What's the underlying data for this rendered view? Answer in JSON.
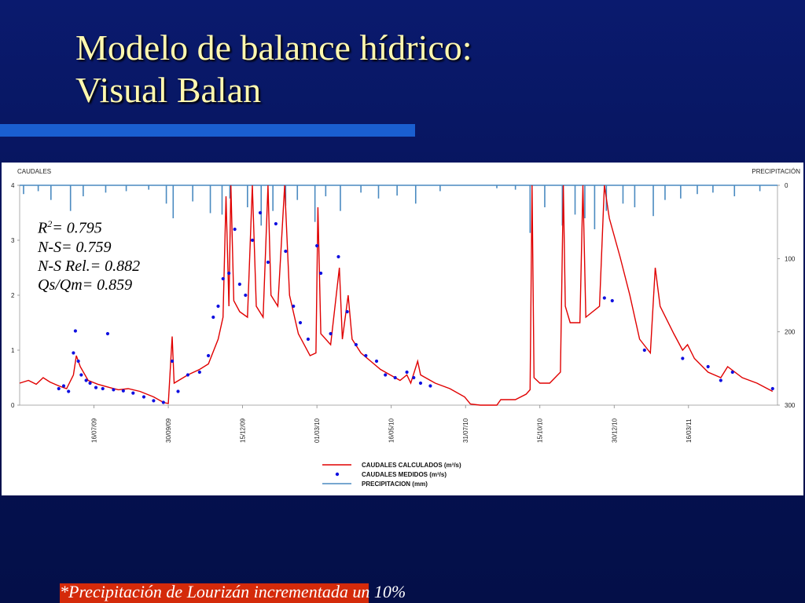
{
  "slide": {
    "title_line1": "Modelo de balance hídrico:",
    "title_line2": "Visual Balan",
    "footnote": "*Precipitación de Lourizán incrementada un 10%",
    "colors": {
      "title": "#fff8b0",
      "accent_bar": "#1a5fd0",
      "footnote_highlight": "#d42a0a"
    }
  },
  "stats": {
    "r2_label": "R",
    "r2_sup": "2",
    "r2_value": "= 0.795",
    "ns": "N-S= 0.759",
    "ns_rel": "N-S Rel.= 0.882",
    "qs_qm": "Qs/Qm= 0.859"
  },
  "chart_data": {
    "type": "line",
    "left_axis_label": "CAUDALES",
    "right_axis_label": "PRECIPITACIÓN",
    "left_ticks": [
      "0",
      "1",
      "2",
      "3",
      "4"
    ],
    "left_ylim": [
      0,
      4
    ],
    "right_ticks": [
      "0",
      "100",
      "200",
      "300"
    ],
    "right_ylim": [
      0,
      300
    ],
    "right_inverted": true,
    "xlim": [
      "2009-05-01",
      "2011-06-15"
    ],
    "x_ticks": [
      "16/07/09",
      "30/09/09",
      "15/12/09",
      "01/03/10",
      "16/05/10",
      "31/07/10",
      "15/10/10",
      "30/12/10",
      "16/03/11"
    ],
    "x_tick_dates": [
      "2009-07-16",
      "2009-09-30",
      "2009-12-15",
      "2010-03-01",
      "2010-05-16",
      "2010-07-31",
      "2010-10-15",
      "2010-12-30",
      "2011-03-16"
    ],
    "legend": [
      "CAUDALES CALCULADOS (m³/s)",
      "CAUDALES MEDIDOS (m³/s)",
      "PRECIPITACION (mm)"
    ],
    "series": [
      {
        "name": "CAUDALES CALCULADOS (m³/s)",
        "color": "#e00000",
        "style": "line",
        "points": [
          [
            "2009-05-01",
            0.4
          ],
          [
            "2009-05-10",
            0.45
          ],
          [
            "2009-05-18",
            0.38
          ],
          [
            "2009-05-25",
            0.5
          ],
          [
            "2009-06-01",
            0.42
          ],
          [
            "2009-06-10",
            0.35
          ],
          [
            "2009-06-18",
            0.3
          ],
          [
            "2009-06-25",
            0.55
          ],
          [
            "2009-06-28",
            0.9
          ],
          [
            "2009-07-02",
            0.7
          ],
          [
            "2009-07-10",
            0.45
          ],
          [
            "2009-07-20",
            0.38
          ],
          [
            "2009-08-01",
            0.32
          ],
          [
            "2009-08-10",
            0.28
          ],
          [
            "2009-08-20",
            0.3
          ],
          [
            "2009-09-01",
            0.25
          ],
          [
            "2009-09-15",
            0.15
          ],
          [
            "2009-09-25",
            0.05
          ],
          [
            "2009-09-30",
            0.03
          ],
          [
            "2009-10-04",
            1.25
          ],
          [
            "2009-10-06",
            0.4
          ],
          [
            "2009-10-20",
            0.55
          ],
          [
            "2009-11-01",
            0.65
          ],
          [
            "2009-11-10",
            0.75
          ],
          [
            "2009-11-20",
            1.2
          ],
          [
            "2009-11-25",
            1.6
          ],
          [
            "2009-11-28",
            3.8
          ],
          [
            "2009-12-01",
            1.8
          ],
          [
            "2009-12-03",
            4.0
          ],
          [
            "2009-12-06",
            1.9
          ],
          [
            "2009-12-12",
            1.7
          ],
          [
            "2009-12-20",
            1.6
          ],
          [
            "2009-12-25",
            4.0
          ],
          [
            "2009-12-29",
            1.8
          ],
          [
            "2010-01-05",
            1.6
          ],
          [
            "2010-01-10",
            4.0
          ],
          [
            "2010-01-13",
            2.0
          ],
          [
            "2010-01-20",
            1.8
          ],
          [
            "2010-01-27",
            4.0
          ],
          [
            "2010-02-01",
            2.0
          ],
          [
            "2010-02-10",
            1.3
          ],
          [
            "2010-02-22",
            0.9
          ],
          [
            "2010-02-28",
            0.95
          ],
          [
            "2010-03-02",
            3.6
          ],
          [
            "2010-03-05",
            1.3
          ],
          [
            "2010-03-15",
            1.1
          ],
          [
            "2010-03-24",
            2.5
          ],
          [
            "2010-03-27",
            1.2
          ],
          [
            "2010-04-02",
            2.0
          ],
          [
            "2010-04-06",
            1.2
          ],
          [
            "2010-04-15",
            0.95
          ],
          [
            "2010-04-25",
            0.8
          ],
          [
            "2010-05-05",
            0.65
          ],
          [
            "2010-05-15",
            0.55
          ],
          [
            "2010-05-25",
            0.45
          ],
          [
            "2010-06-01",
            0.55
          ],
          [
            "2010-06-05",
            0.4
          ],
          [
            "2010-06-12",
            0.8
          ],
          [
            "2010-06-15",
            0.55
          ],
          [
            "2010-06-30",
            0.4
          ],
          [
            "2010-07-15",
            0.3
          ],
          [
            "2010-07-30",
            0.15
          ],
          [
            "2010-08-05",
            0.02
          ],
          [
            "2010-08-15",
            0.0
          ],
          [
            "2010-09-01",
            0.0
          ],
          [
            "2010-09-05",
            0.1
          ],
          [
            "2010-09-20",
            0.1
          ],
          [
            "2010-10-01",
            0.2
          ],
          [
            "2010-10-05",
            0.28
          ],
          [
            "2010-10-07",
            4.0
          ],
          [
            "2010-10-09",
            0.5
          ],
          [
            "2010-10-15",
            0.4
          ],
          [
            "2010-10-25",
            0.4
          ],
          [
            "2010-11-05",
            0.6
          ],
          [
            "2010-11-08",
            4.0
          ],
          [
            "2010-11-10",
            1.8
          ],
          [
            "2010-11-15",
            1.5
          ],
          [
            "2010-11-25",
            1.5
          ],
          [
            "2010-11-28",
            4.0
          ],
          [
            "2010-12-01",
            1.6
          ],
          [
            "2010-12-15",
            1.8
          ],
          [
            "2010-12-20",
            4.0
          ],
          [
            "2010-12-25",
            3.4
          ],
          [
            "2011-01-05",
            2.7
          ],
          [
            "2011-01-15",
            2.0
          ],
          [
            "2011-01-25",
            1.2
          ],
          [
            "2011-02-05",
            0.95
          ],
          [
            "2011-02-10",
            2.5
          ],
          [
            "2011-02-15",
            1.8
          ],
          [
            "2011-03-01",
            1.3
          ],
          [
            "2011-03-10",
            1.0
          ],
          [
            "2011-03-15",
            1.1
          ],
          [
            "2011-03-22",
            0.85
          ],
          [
            "2011-04-05",
            0.6
          ],
          [
            "2011-04-18",
            0.5
          ],
          [
            "2011-04-25",
            0.7
          ],
          [
            "2011-05-10",
            0.5
          ],
          [
            "2011-05-25",
            0.4
          ],
          [
            "2011-06-10",
            0.25
          ]
        ]
      },
      {
        "name": "CAUDALES MEDIDOS (m³/s)",
        "color": "#1010e0",
        "style": "dots",
        "points": [
          [
            "2009-06-10",
            0.3
          ],
          [
            "2009-06-15",
            0.35
          ],
          [
            "2009-06-20",
            0.25
          ],
          [
            "2009-06-25",
            0.95
          ],
          [
            "2009-06-27",
            1.35
          ],
          [
            "2009-06-30",
            0.8
          ],
          [
            "2009-07-03",
            0.55
          ],
          [
            "2009-07-08",
            0.45
          ],
          [
            "2009-07-12",
            0.4
          ],
          [
            "2009-07-18",
            0.32
          ],
          [
            "2009-07-25",
            0.3
          ],
          [
            "2009-07-30",
            1.3
          ],
          [
            "2009-08-05",
            0.28
          ],
          [
            "2009-08-15",
            0.26
          ],
          [
            "2009-08-25",
            0.22
          ],
          [
            "2009-09-05",
            0.15
          ],
          [
            "2009-09-15",
            0.08
          ],
          [
            "2009-09-25",
            0.05
          ],
          [
            "2009-10-04",
            0.8
          ],
          [
            "2009-10-10",
            0.25
          ],
          [
            "2009-10-20",
            0.55
          ],
          [
            "2009-11-01",
            0.6
          ],
          [
            "2009-11-10",
            0.9
          ],
          [
            "2009-11-15",
            1.6
          ],
          [
            "2009-11-20",
            1.8
          ],
          [
            "2009-11-25",
            2.3
          ],
          [
            "2009-12-01",
            2.4
          ],
          [
            "2009-12-07",
            3.2
          ],
          [
            "2009-12-12",
            2.2
          ],
          [
            "2009-12-18",
            2.0
          ],
          [
            "2009-12-25",
            3.0
          ],
          [
            "2010-01-02",
            3.5
          ],
          [
            "2010-01-10",
            2.6
          ],
          [
            "2010-01-18",
            3.3
          ],
          [
            "2010-01-28",
            2.8
          ],
          [
            "2010-02-05",
            1.8
          ],
          [
            "2010-02-12",
            1.5
          ],
          [
            "2010-02-20",
            1.2
          ],
          [
            "2010-03-01",
            2.9
          ],
          [
            "2010-03-05",
            2.4
          ],
          [
            "2010-03-15",
            1.3
          ],
          [
            "2010-03-23",
            2.7
          ],
          [
            "2010-04-01",
            1.7
          ],
          [
            "2010-04-10",
            1.1
          ],
          [
            "2010-04-20",
            0.9
          ],
          [
            "2010-05-01",
            0.8
          ],
          [
            "2010-05-10",
            0.55
          ],
          [
            "2010-05-20",
            0.5
          ],
          [
            "2010-06-01",
            0.6
          ],
          [
            "2010-06-08",
            0.5
          ],
          [
            "2010-06-15",
            0.4
          ],
          [
            "2010-06-25",
            0.35
          ],
          [
            "2010-12-20",
            1.95
          ],
          [
            "2010-12-28",
            1.9
          ],
          [
            "2011-01-30",
            1.0
          ],
          [
            "2011-03-10",
            0.85
          ],
          [
            "2011-04-05",
            0.7
          ],
          [
            "2011-04-18",
            0.45
          ],
          [
            "2011-04-30",
            0.6
          ],
          [
            "2011-06-10",
            0.3
          ]
        ]
      },
      {
        "name": "PRECIPITACION (mm)",
        "color": "#4a8ac0",
        "style": "bars",
        "points": [
          [
            "2009-05-05",
            12
          ],
          [
            "2009-05-20",
            8
          ],
          [
            "2009-06-02",
            20
          ],
          [
            "2009-06-22",
            35
          ],
          [
            "2009-07-05",
            15
          ],
          [
            "2009-07-28",
            10
          ],
          [
            "2009-08-18",
            8
          ],
          [
            "2009-09-10",
            6
          ],
          [
            "2009-09-28",
            25
          ],
          [
            "2009-10-05",
            45
          ],
          [
            "2009-10-25",
            22
          ],
          [
            "2009-11-12",
            38
          ],
          [
            "2009-11-24",
            40
          ],
          [
            "2009-12-02",
            18
          ],
          [
            "2009-12-20",
            30
          ],
          [
            "2010-01-03",
            55
          ],
          [
            "2010-01-15",
            35
          ],
          [
            "2010-01-28",
            28
          ],
          [
            "2010-02-09",
            20
          ],
          [
            "2010-02-27",
            50
          ],
          [
            "2010-03-10",
            15
          ],
          [
            "2010-03-25",
            35
          ],
          [
            "2010-04-15",
            10
          ],
          [
            "2010-05-03",
            18
          ],
          [
            "2010-05-22",
            14
          ],
          [
            "2010-06-10",
            25
          ],
          [
            "2010-07-05",
            8
          ],
          [
            "2010-09-01",
            4
          ],
          [
            "2010-09-20",
            6
          ],
          [
            "2010-10-05",
            65
          ],
          [
            "2010-10-20",
            30
          ],
          [
            "2010-11-07",
            55
          ],
          [
            "2010-11-20",
            40
          ],
          [
            "2010-11-30",
            45
          ],
          [
            "2010-12-10",
            60
          ],
          [
            "2010-12-22",
            35
          ],
          [
            "2011-01-08",
            25
          ],
          [
            "2011-01-20",
            30
          ],
          [
            "2011-02-08",
            42
          ],
          [
            "2011-02-20",
            20
          ],
          [
            "2011-03-08",
            18
          ],
          [
            "2011-03-25",
            12
          ],
          [
            "2011-04-10",
            10
          ],
          [
            "2011-05-02",
            15
          ],
          [
            "2011-05-28",
            8
          ]
        ]
      }
    ]
  }
}
